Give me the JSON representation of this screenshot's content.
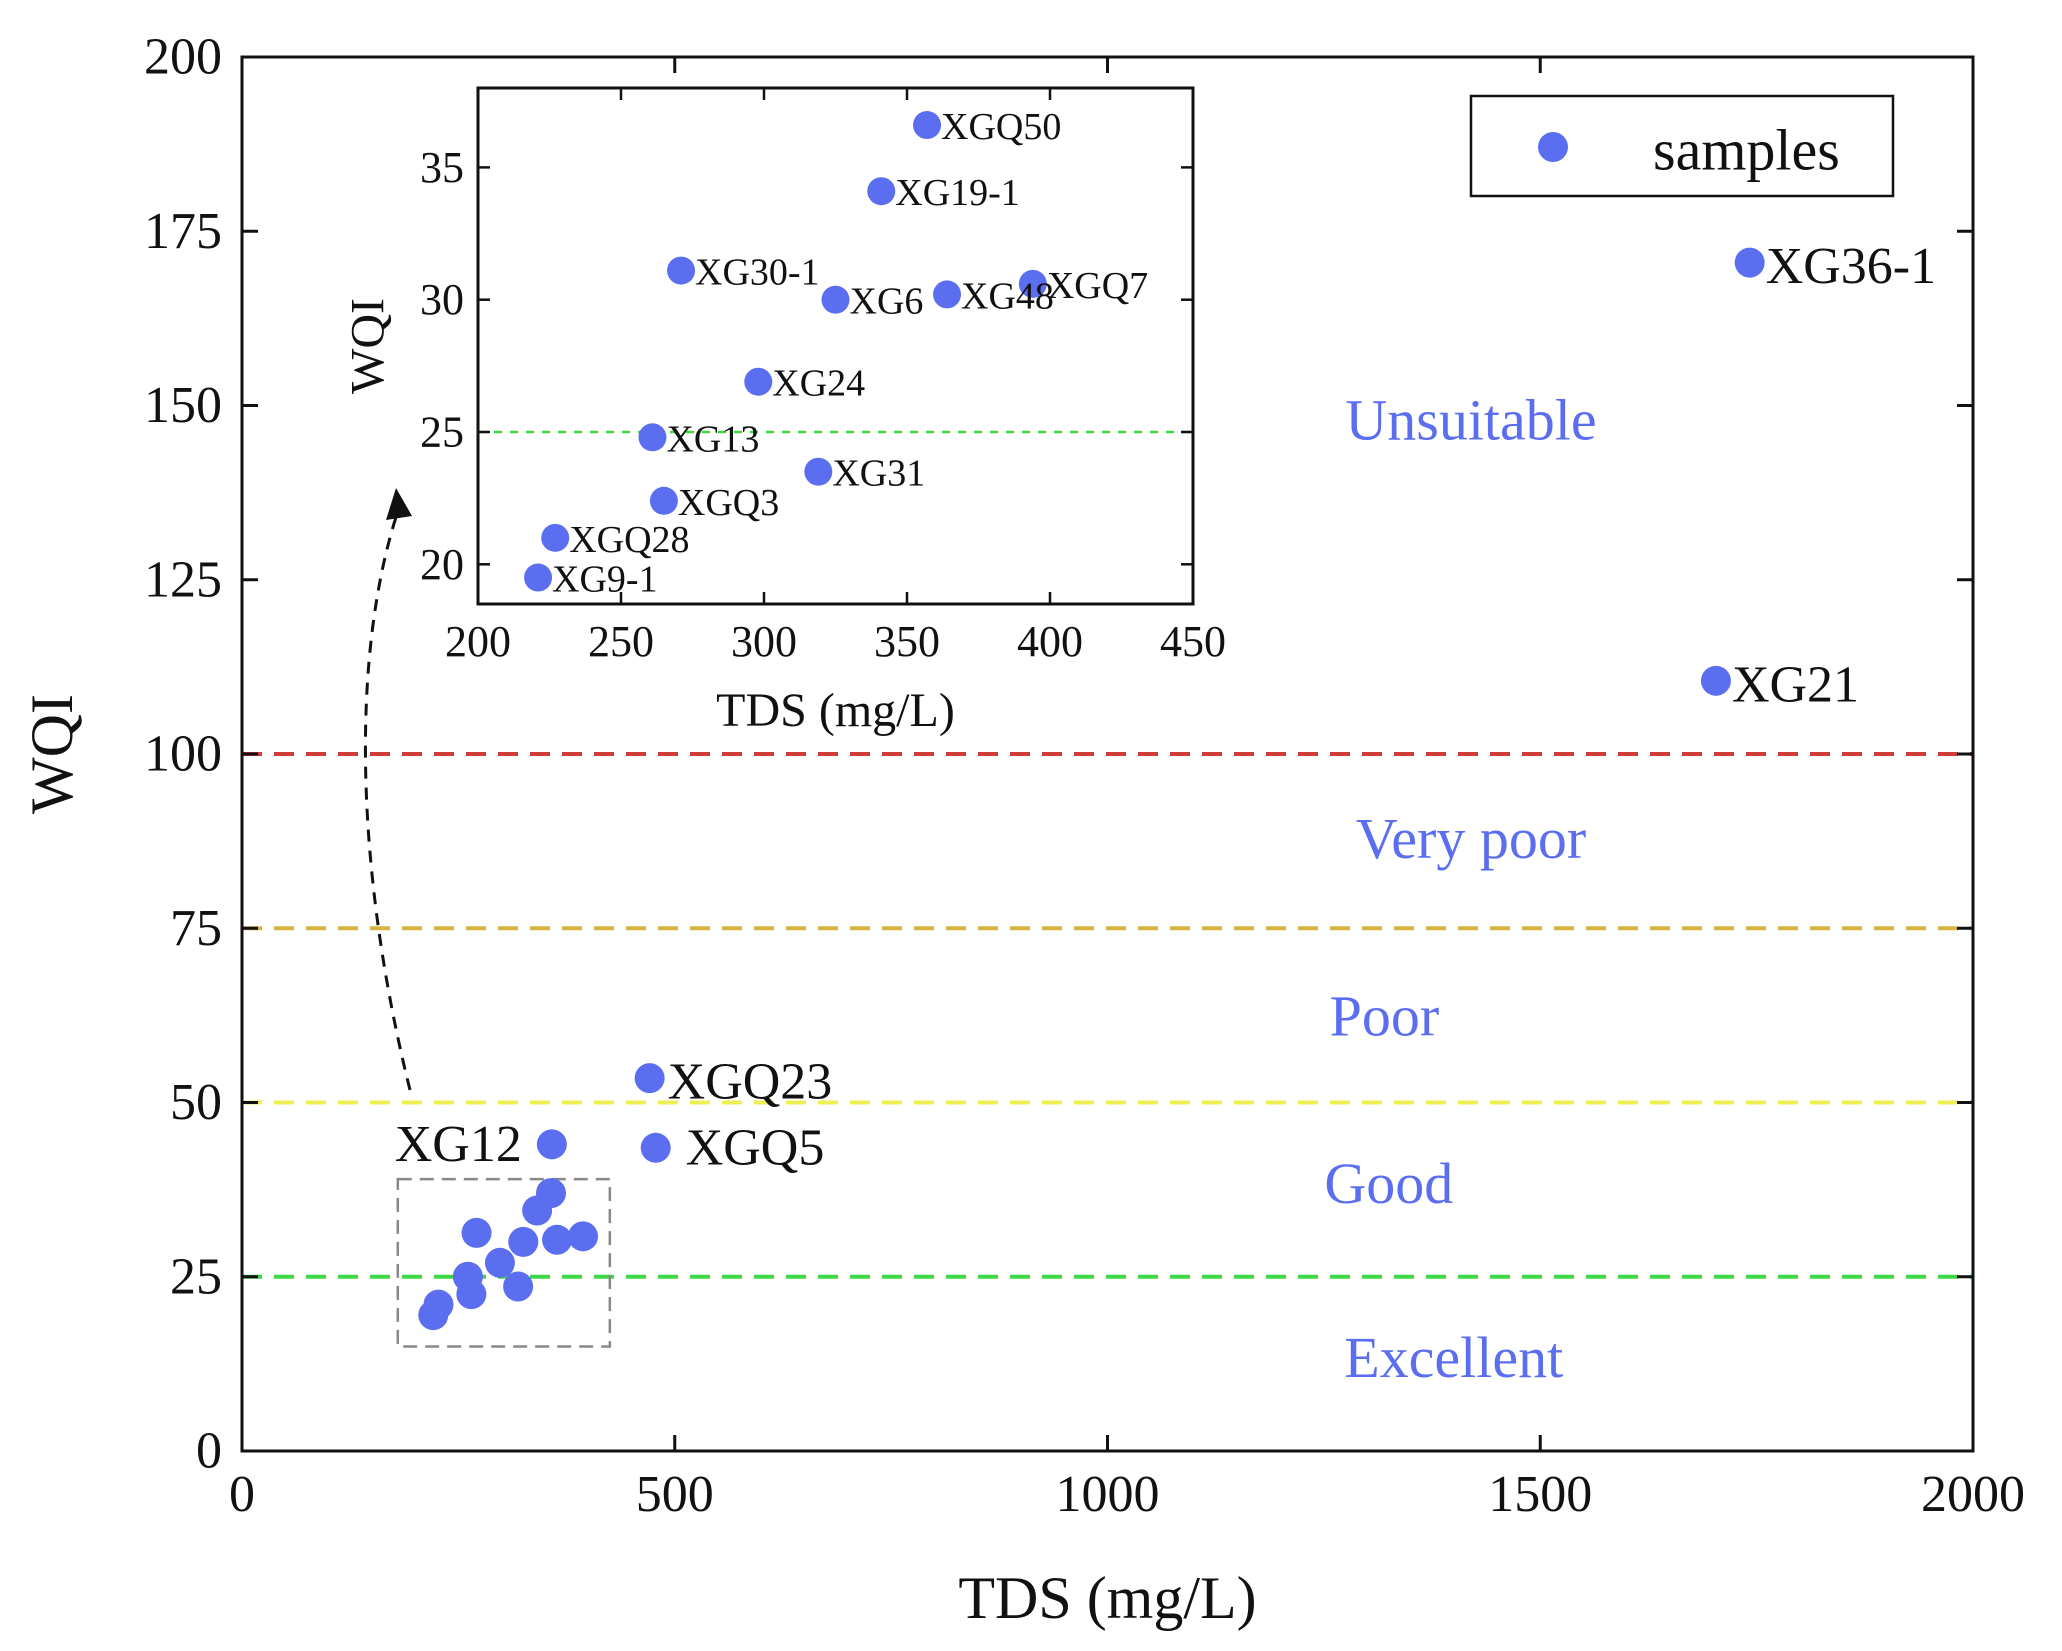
{
  "chart_data": [
    {
      "type": "scatter",
      "id": "main",
      "xlabel": "TDS (mg/L)",
      "ylabel": "WQI",
      "xlim": [
        0,
        2000
      ],
      "ylim": [
        0,
        200
      ],
      "xticks": [
        0,
        500,
        1000,
        1500,
        2000
      ],
      "yticks": [
        0,
        25,
        50,
        75,
        100,
        125,
        150,
        175,
        200
      ],
      "grid": false,
      "legend": {
        "position": "top-right",
        "entries": [
          "samples"
        ]
      },
      "series": [
        {
          "name": "samples",
          "color": "#5b6ef0",
          "points": [
            {
              "x": 1742,
              "y": 170.5,
              "label": "XG36-1"
            },
            {
              "x": 1703,
              "y": 110.5,
              "label": "XG21"
            },
            {
              "x": 471,
              "y": 53.5,
              "label": "XGQ23"
            },
            {
              "x": 478,
              "y": 43.5,
              "label": "XGQ5"
            },
            {
              "x": 358,
              "y": 44,
              "label": "XG12"
            },
            {
              "x": 357,
              "y": 37,
              "label": ""
            },
            {
              "x": 341,
              "y": 34.5,
              "label": ""
            },
            {
              "x": 271,
              "y": 31.3,
              "label": ""
            },
            {
              "x": 325,
              "y": 30,
              "label": ""
            },
            {
              "x": 364,
              "y": 30.3,
              "label": ""
            },
            {
              "x": 394,
              "y": 30.8,
              "label": ""
            },
            {
              "x": 298,
              "y": 27,
              "label": ""
            },
            {
              "x": 261,
              "y": 25,
              "label": ""
            },
            {
              "x": 319,
              "y": 23.6,
              "label": ""
            },
            {
              "x": 265,
              "y": 22.5,
              "label": ""
            },
            {
              "x": 227,
              "y": 21,
              "label": ""
            },
            {
              "x": 221,
              "y": 19.5,
              "label": ""
            }
          ]
        }
      ],
      "reference_lines": [
        {
          "y": 100,
          "color": "#d03b3b"
        },
        {
          "y": 75,
          "color": "#d6b640"
        },
        {
          "y": 50,
          "color": "#f0ee55"
        },
        {
          "y": 25,
          "color": "#3fd643"
        }
      ],
      "zones": [
        {
          "label": "Unsuitable",
          "x": 1420,
          "y": 147
        },
        {
          "label": "Very poor",
          "x": 1420,
          "y": 87
        },
        {
          "label": "Poor",
          "x": 1320,
          "y": 61.5
        },
        {
          "label": "Good",
          "x": 1325,
          "y": 37.5
        },
        {
          "label": "Excellent",
          "x": 1400,
          "y": 12.5
        }
      ],
      "zoom_box": {
        "x": [
          180,
          425
        ],
        "y": [
          15,
          39
        ]
      },
      "zone_label_color": "#5b6ef0"
    },
    {
      "type": "scatter",
      "id": "inset",
      "xlabel": "TDS (mg/L)",
      "ylabel": "WQI",
      "xlim": [
        200,
        450
      ],
      "ylim": [
        18.5,
        38
      ],
      "xticks": [
        200,
        250,
        300,
        350,
        400,
        450
      ],
      "yticks": [
        20,
        25,
        30,
        35
      ],
      "grid": false,
      "series": [
        {
          "name": "samples",
          "color": "#5b6ef0",
          "points": [
            {
              "x": 357,
              "y": 36.6,
              "label": "XGQ50"
            },
            {
              "x": 341,
              "y": 34.1,
              "label": "XG19-1"
            },
            {
              "x": 271,
              "y": 31.1,
              "label": "XG30-1"
            },
            {
              "x": 325,
              "y": 30.0,
              "label": "XG6"
            },
            {
              "x": 364,
              "y": 30.2,
              "label": "XG48"
            },
            {
              "x": 394,
              "y": 30.6,
              "label": "XGQ7"
            },
            {
              "x": 298,
              "y": 26.9,
              "label": "XG24"
            },
            {
              "x": 261,
              "y": 24.8,
              "label": "XG13"
            },
            {
              "x": 319,
              "y": 23.5,
              "label": "XG31"
            },
            {
              "x": 265,
              "y": 22.4,
              "label": "XGQ3"
            },
            {
              "x": 227,
              "y": 21.0,
              "label": "XGQ28"
            },
            {
              "x": 221,
              "y": 19.5,
              "label": "XG9-1"
            }
          ]
        }
      ],
      "reference_lines": [
        {
          "y": 25,
          "color": "#3fd643"
        }
      ]
    }
  ]
}
